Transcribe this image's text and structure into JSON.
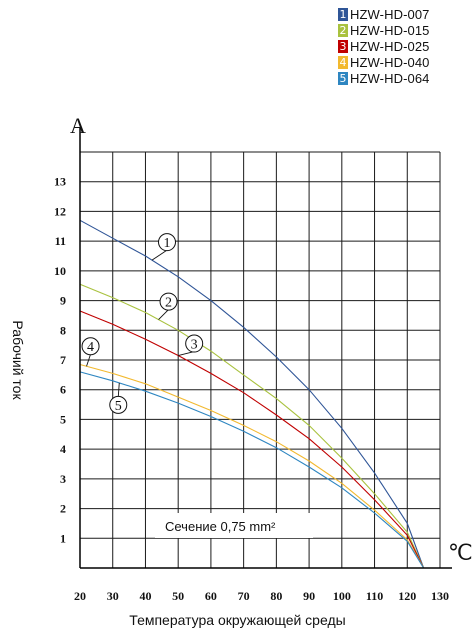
{
  "chart_data": {
    "type": "line",
    "y_unit": "A",
    "x_unit": "℃",
    "xlabel": "Температура окружающей среды",
    "ylabel": "Рабочий ток",
    "annotation": "Сечение 0,75 mm²",
    "xlim": [
      20,
      130
    ],
    "ylim": [
      0,
      14
    ],
    "x_ticks": [
      "20",
      "30",
      "40",
      "50",
      "60",
      "70",
      "80",
      "90",
      "100",
      "110",
      "120",
      "130"
    ],
    "y_ticks": [
      "1",
      "2",
      "3",
      "4",
      "5",
      "6",
      "7",
      "8",
      "9",
      "10",
      "11",
      "12",
      "13"
    ],
    "grid": true,
    "legend_position": "top-right",
    "series": [
      {
        "name": "HZW-HD-007",
        "marker": "1",
        "color": "#2f5597",
        "x": [
          20,
          30,
          40,
          50,
          60,
          70,
          80,
          90,
          100,
          110,
          120,
          125
        ],
        "y": [
          11.7,
          11.1,
          10.5,
          9.8,
          9.0,
          8.1,
          7.1,
          6.0,
          4.7,
          3.2,
          1.5,
          0.0
        ]
      },
      {
        "name": "HZW-HD-015",
        "marker": "2",
        "color": "#a9c23f",
        "x": [
          20,
          30,
          40,
          50,
          60,
          70,
          80,
          90,
          100,
          110,
          120,
          125
        ],
        "y": [
          9.55,
          9.1,
          8.6,
          8.0,
          7.3,
          6.5,
          5.7,
          4.8,
          3.7,
          2.5,
          1.2,
          0.0
        ]
      },
      {
        "name": "HZW-HD-025",
        "marker": "3",
        "color": "#c00000",
        "x": [
          20,
          30,
          40,
          50,
          60,
          70,
          80,
          90,
          100,
          110,
          120,
          125
        ],
        "y": [
          8.65,
          8.2,
          7.7,
          7.15,
          6.55,
          5.9,
          5.15,
          4.35,
          3.4,
          2.3,
          1.1,
          0.0
        ]
      },
      {
        "name": "HZW-HD-040",
        "marker": "4",
        "color": "#f2b92f",
        "x": [
          20,
          30,
          40,
          50,
          60,
          70,
          80,
          90,
          100,
          110,
          120,
          125
        ],
        "y": [
          6.85,
          6.55,
          6.2,
          5.75,
          5.3,
          4.8,
          4.25,
          3.6,
          2.85,
          1.95,
          0.95,
          0.0
        ]
      },
      {
        "name": "HZW-HD-064",
        "marker": "5",
        "color": "#2e86c1",
        "x": [
          20,
          30,
          40,
          50,
          60,
          70,
          80,
          90,
          100,
          110,
          120,
          125
        ],
        "y": [
          6.6,
          6.3,
          5.95,
          5.55,
          5.1,
          4.6,
          4.05,
          3.4,
          2.7,
          1.85,
          0.9,
          0.0
        ]
      }
    ]
  }
}
